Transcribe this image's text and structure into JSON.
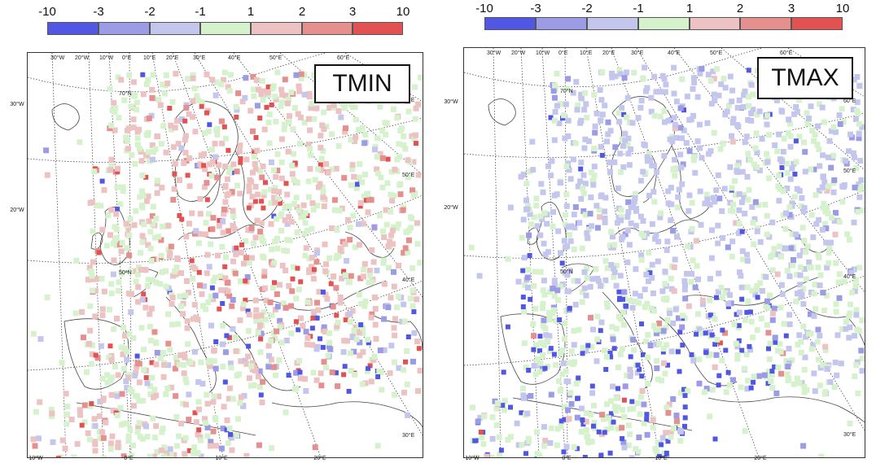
{
  "colorbar": {
    "labels": [
      "-10",
      "-3",
      "-2",
      "-1",
      "1",
      "2",
      "3",
      "10"
    ],
    "colors": [
      "#5157e3",
      "#9b9be6",
      "#c4c6ee",
      "#d5f2cc",
      "#ecc2c2",
      "#e68f8f",
      "#e35252"
    ]
  },
  "panels": [
    {
      "name": "tmin",
      "title": "TMIN",
      "top_lon_labels": [
        "30°W",
        "20°W",
        "10°W",
        "0°E",
        "10°E",
        "20°E",
        "30°E",
        "40°E",
        "50°E",
        "60°E"
      ],
      "left_lat_labels": [
        "30°W",
        "20°W"
      ],
      "right_lat_labels": [
        "60°E",
        "50°E",
        "40°E",
        "30°E"
      ],
      "bottom_lon_labels": [
        "10°W",
        "0°E",
        "10°E",
        "20°E"
      ],
      "inner_lat_labels": [
        "70°N",
        "50°N"
      ]
    },
    {
      "name": "tmax",
      "title": "TMAX",
      "top_lon_labels": [
        "30°W",
        "20°W",
        "10°W",
        "0°E",
        "10°E",
        "20°E",
        "30°E",
        "40°E",
        "50°E",
        "60°E"
      ],
      "left_lat_labels": [
        "30°W",
        "20°W"
      ],
      "right_lat_labels": [
        "60°E",
        "50°E",
        "40°E",
        "30°E"
      ],
      "bottom_lon_labels": [
        "10°W",
        "0°E",
        "10°E",
        "20°E"
      ],
      "inner_lat_labels": [
        "70°N",
        "50°N"
      ]
    }
  ]
}
